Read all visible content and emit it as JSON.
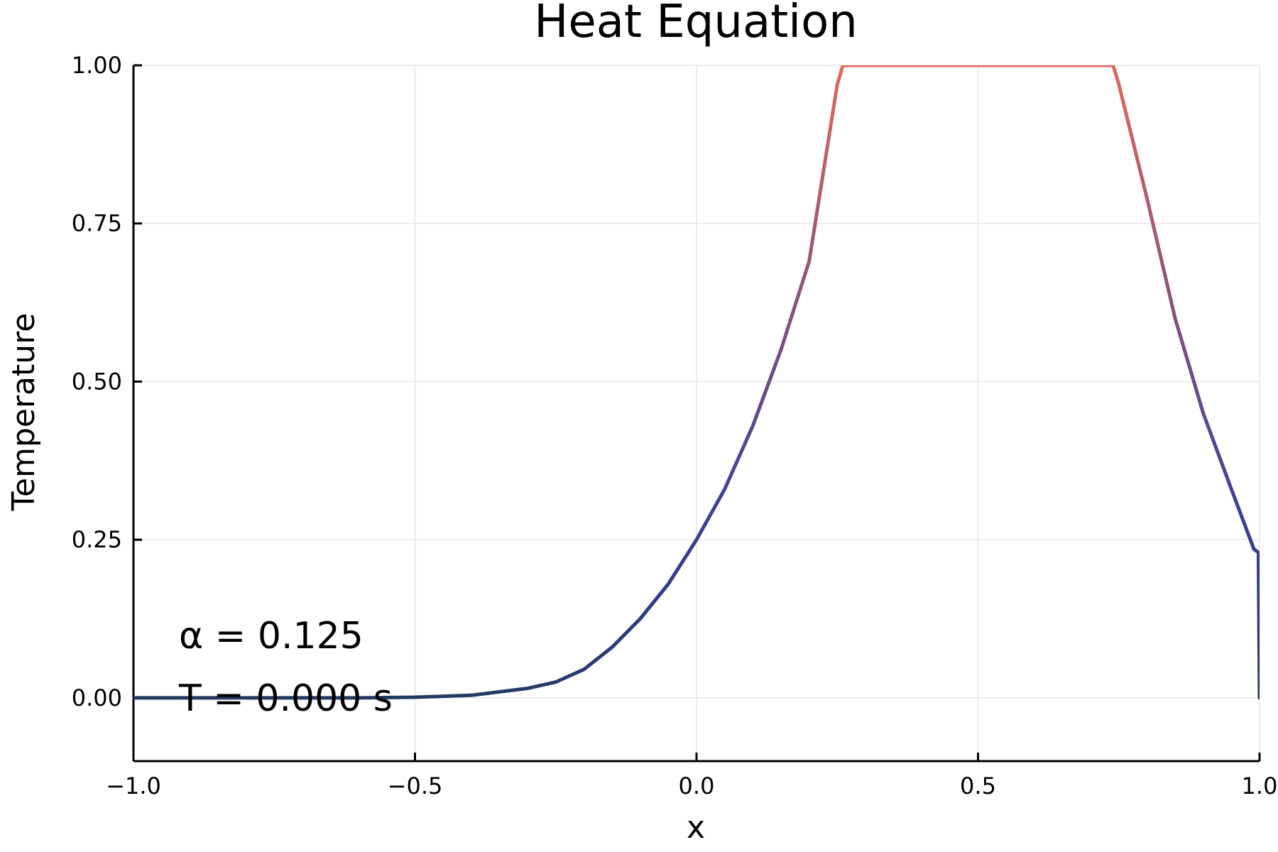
{
  "chart_data": {
    "type": "line",
    "title": "Heat Equation",
    "xlabel": "x",
    "ylabel": "Temperature",
    "xlim": [
      -1.0,
      1.0
    ],
    "ylim": [
      -0.1,
      1.0
    ],
    "x_ticks": [
      -1.0,
      -0.5,
      0.0,
      0.5,
      1.0
    ],
    "x_tick_labels": [
      "−1.0",
      "−0.5",
      "0.0",
      "0.5",
      "1.0"
    ],
    "y_ticks": [
      0.0,
      0.25,
      0.5,
      0.75,
      1.0
    ],
    "y_tick_labels": [
      "0.00",
      "0.25",
      "0.50",
      "0.75",
      "1.00"
    ],
    "grid": true,
    "legend": "none",
    "line_color_low": "#1a3a52",
    "line_color_mid": "#3a3f9a",
    "line_color_high": "#e06a5a",
    "annotations": [
      "α = 0.125",
      "T = 0.000 s"
    ],
    "series": [
      {
        "x": [
          -1.0,
          -0.8,
          -0.6,
          -0.5,
          -0.4,
          -0.3,
          -0.25,
          -0.2,
          -0.15,
          -0.1,
          -0.05,
          0.0,
          0.05,
          0.1,
          0.15,
          0.2,
          0.25,
          0.26,
          0.74,
          0.75,
          0.8,
          0.85,
          0.9,
          0.95,
          0.99,
          0.998,
          1.0
        ],
        "y": [
          0.0,
          0.0,
          0.0,
          0.001,
          0.004,
          0.015,
          0.025,
          0.045,
          0.08,
          0.125,
          0.18,
          0.25,
          0.33,
          0.43,
          0.55,
          0.69,
          0.97,
          1.0,
          1.0,
          0.97,
          0.79,
          0.6,
          0.45,
          0.33,
          0.235,
          0.23,
          0.0
        ]
      }
    ]
  }
}
